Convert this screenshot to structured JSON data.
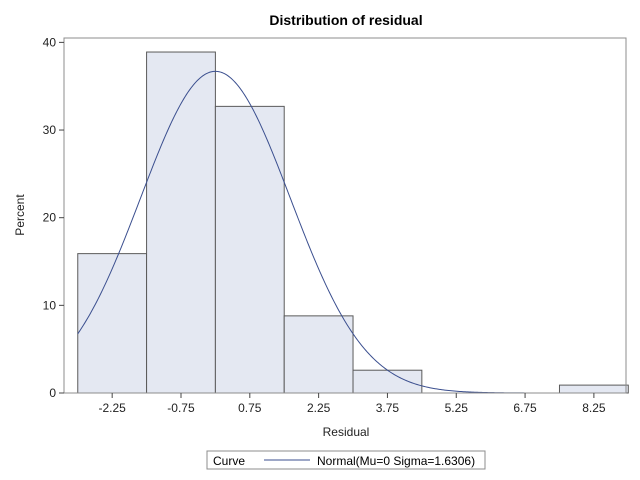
{
  "chart_data": {
    "type": "bar",
    "title": "Distribution of residual",
    "xlabel": "Residual",
    "ylabel": "Percent",
    "x_ticks": [
      "-2.25",
      "-0.75",
      "0.75",
      "2.25",
      "3.75",
      "5.25",
      "6.75",
      "8.25"
    ],
    "y_ticks": [
      "0",
      "10",
      "20",
      "30",
      "40"
    ],
    "xlim": [
      -3.3,
      8.95
    ],
    "ylim": [
      0,
      40.5
    ],
    "bins": [
      {
        "center": -2.25,
        "value": 15.9
      },
      {
        "center": -0.75,
        "value": 38.9
      },
      {
        "center": 0.75,
        "value": 32.7
      },
      {
        "center": 2.25,
        "value": 8.8
      },
      {
        "center": 3.75,
        "value": 2.6
      },
      {
        "center": 8.25,
        "value": 0.9
      }
    ],
    "bin_width": 1.5,
    "curve": {
      "mu": 0,
      "sigma": 1.6306
    },
    "legend": {
      "title": "Curve",
      "entry": "Normal(Mu=0 Sigma=1.6306)",
      "placement": "bottom"
    },
    "colors": {
      "bar_fill": "#e4e8f2",
      "bar_stroke": "#5a5a5a",
      "curve": "#3b4f8f",
      "frame": "#8c8c8c"
    }
  }
}
